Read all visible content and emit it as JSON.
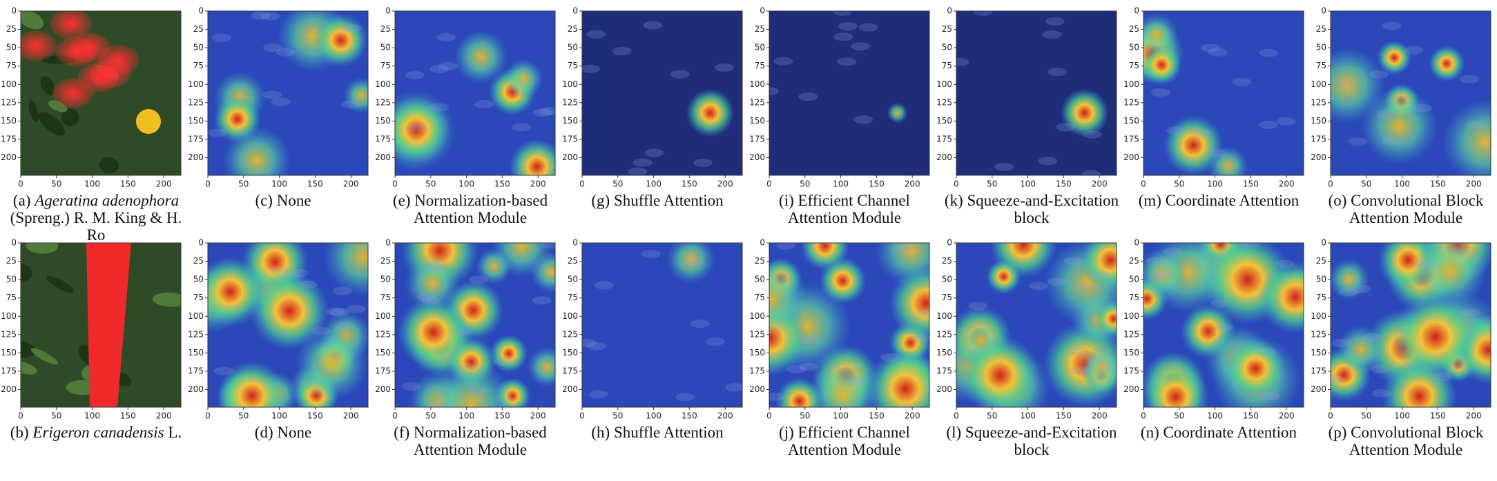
{
  "axes": {
    "xticks": [
      0,
      50,
      100,
      150,
      200
    ],
    "yticks": [
      0,
      25,
      50,
      75,
      100,
      125,
      150,
      175,
      200
    ]
  },
  "rows": [
    [
      {
        "label": "(a)",
        "italic": "Ageratina adenophora",
        "text": "(Spreng.) R. M. King & H. Ro"
      },
      {
        "text": "(c) None"
      },
      {
        "text": "(e) Normalization-based Attention Module"
      },
      {
        "text": "(g) Shuffle Attention"
      },
      {
        "text": "(i) Efficient Channel Attention Module"
      },
      {
        "text": "(k) Squeeze-and-Excitation block"
      },
      {
        "text": "(m) Coordinate Attention"
      },
      {
        "text": "(o) Convolutional Block Attention Module"
      }
    ],
    [
      {
        "label": "(b)",
        "italic": "Erigeron canadensis",
        "text": "L."
      },
      {
        "text": "(d) None"
      },
      {
        "text": "(f) Normalization-based Attention Module"
      },
      {
        "text": "(h) Shuffle Attention"
      },
      {
        "text": "(j) Efficient Channel Attention Module"
      },
      {
        "text": "(l) Squeeze-and-Excitation block"
      },
      {
        "text": "(n) Coordinate Attention"
      },
      {
        "text": "(p) Convolutional Block Attention Module"
      }
    ]
  ]
}
